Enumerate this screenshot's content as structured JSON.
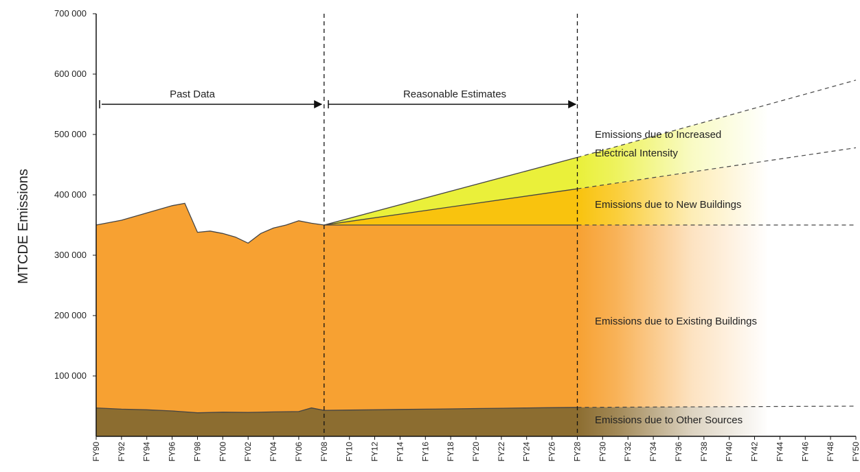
{
  "chart_data": {
    "type": "area",
    "ylabel": "MTCDE Emissions",
    "xlabel": "",
    "ylim": [
      0,
      700000
    ],
    "y_ticks": [
      {
        "value": 100000,
        "label": "100 000"
      },
      {
        "value": 200000,
        "label": "200 000"
      },
      {
        "value": 300000,
        "label": "300 000"
      },
      {
        "value": 400000,
        "label": "400 000"
      },
      {
        "value": 500000,
        "label": "500 000"
      },
      {
        "value": 600000,
        "label": "600 000"
      },
      {
        "value": 700000,
        "label": "700 000"
      }
    ],
    "x_ticks": [
      "FY90",
      "FY92",
      "FY94",
      "FY96",
      "FY98",
      "FY00",
      "FY02",
      "FY04",
      "FY06",
      "FY08",
      "FY10",
      "FY12",
      "FY14",
      "FY16",
      "FY18",
      "FY20",
      "FY22",
      "FY24",
      "FY26",
      "FY28",
      "FY30",
      "FY32",
      "FY34",
      "FY36",
      "FY38",
      "FY40",
      "FY42",
      "FY44",
      "FY46",
      "FY48",
      "FY50"
    ],
    "x_range": [
      1990,
      2050
    ],
    "divider_years": [
      2008,
      2028
    ],
    "colors": {
      "other": "#8c6d30",
      "existing": "#f7a132",
      "new_buildings": "#f9c30e",
      "electrical": "#eaf03a",
      "outline": "#444444"
    },
    "series": [
      {
        "name": "Emissions due to Other Sources",
        "key": "other",
        "x": [
          1990,
          1992,
          1994,
          1996,
          1998,
          2000,
          2002,
          2004,
          2006,
          2007,
          2008,
          2010,
          2012,
          2014,
          2016,
          2018,
          2020,
          2022,
          2024,
          2026,
          2028
        ],
        "values": [
          47000,
          45000,
          44000,
          42000,
          39000,
          40000,
          39500,
          40500,
          41000,
          47000,
          43000,
          43500,
          44000,
          44500,
          45000,
          45500,
          46000,
          46500,
          47000,
          47500,
          48000
        ],
        "projection": {
          "x": [
            2028,
            2050
          ],
          "values": [
            48000,
            50000
          ]
        }
      },
      {
        "name": "Emissions due to Existing Buildings",
        "key": "existing",
        "x": [
          1990,
          1992,
          1994,
          1996,
          1997,
          1998,
          1999,
          2000,
          2001,
          2002,
          2003,
          2004,
          2005,
          2006,
          2007,
          2008,
          2028
        ],
        "values": [
          350000,
          358000,
          370000,
          382000,
          386000,
          338000,
          340000,
          336000,
          330000,
          320000,
          336000,
          345000,
          350000,
          357000,
          353000,
          350000,
          350000
        ],
        "projection": {
          "x": [
            2028,
            2050
          ],
          "values": [
            350000,
            350000
          ]
        }
      },
      {
        "name": "Emissions due to New Buildings",
        "key": "new_buildings",
        "x": [
          2008,
          2028
        ],
        "values": [
          350000,
          410000
        ],
        "projection": {
          "x": [
            2028,
            2050
          ],
          "values": [
            410000,
            478000
          ]
        }
      },
      {
        "name": "Emissions due to Increased Electrical Intensity",
        "key": "electrical",
        "x": [
          2008,
          2028
        ],
        "values": [
          350000,
          462000
        ],
        "projection": {
          "x": [
            2028,
            2050
          ],
          "values": [
            462000,
            590000
          ]
        }
      }
    ],
    "annotations": {
      "past_data": "Past Data",
      "reasonable_estimates": "Reasonable Estimates",
      "electrical_line1": "Emissions due to Increased",
      "electrical_line2": "Electrical Intensity",
      "new_buildings": "Emissions due to New Buildings",
      "existing_buildings": "Emissions due to Existing Buildings",
      "other_sources": "Emissions due to Other Sources"
    }
  }
}
